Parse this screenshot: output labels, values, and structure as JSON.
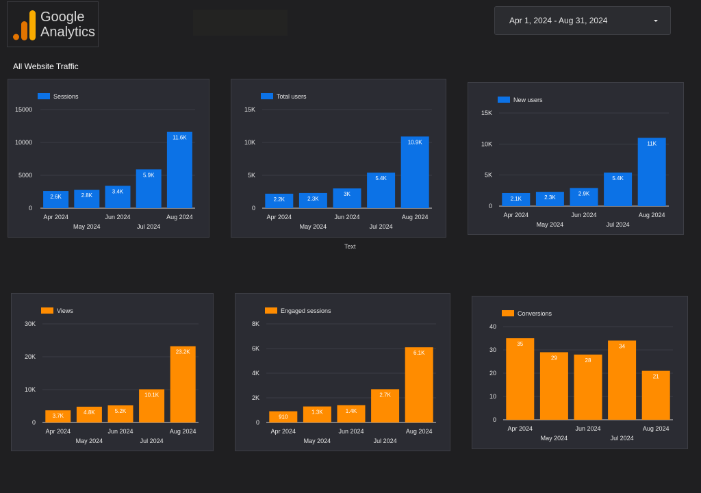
{
  "header": {
    "logo_text_line1": "Google",
    "logo_text_line2": "Analytics",
    "date_range": "Apr 1, 2024 - Aug 31, 2024",
    "section_title": "All Website Traffic",
    "stray_label": "Text"
  },
  "colors": {
    "blue": "#0c72e6",
    "orange": "#ff8c00",
    "logo_dark": "#e37400",
    "logo_light": "#f9ab00"
  },
  "chart_data": [
    {
      "id": "sessions",
      "type": "bar",
      "color": "blue",
      "legend": "Sessions",
      "categories": [
        "Apr 2024",
        "May 2024",
        "Jun 2024",
        "Jul 2024",
        "Aug 2024"
      ],
      "values": [
        2600,
        2800,
        3400,
        5900,
        11600
      ],
      "labels": [
        "2.6K",
        "2.8K",
        "3.4K",
        "5.9K",
        "11.6K"
      ],
      "ylim": [
        0,
        15000
      ],
      "yticks": [
        0,
        5000,
        10000,
        15000
      ],
      "ytick_labels": [
        "0",
        "5000",
        "10000",
        "15000"
      ],
      "grid": true,
      "legend_position": "top-left"
    },
    {
      "id": "total-users",
      "type": "bar",
      "color": "blue",
      "legend": "Total users",
      "categories": [
        "Apr 2024",
        "May 2024",
        "Jun 2024",
        "Jul 2024",
        "Aug 2024"
      ],
      "values": [
        2200,
        2300,
        3000,
        5400,
        10900
      ],
      "labels": [
        "2.2K",
        "2.3K",
        "3K",
        "5.4K",
        "10.9K"
      ],
      "ylim": [
        0,
        15000
      ],
      "yticks": [
        0,
        5000,
        10000,
        15000
      ],
      "ytick_labels": [
        "0",
        "5K",
        "10K",
        "15K"
      ],
      "grid": true,
      "legend_position": "top-left"
    },
    {
      "id": "new-users",
      "type": "bar",
      "color": "blue",
      "legend": "New users",
      "categories": [
        "Apr 2024",
        "May 2024",
        "Jun 2024",
        "Jul 2024",
        "Aug 2024"
      ],
      "values": [
        2100,
        2300,
        2900,
        5400,
        11000
      ],
      "labels": [
        "2.1K",
        "2.3K",
        "2.9K",
        "5.4K",
        "11K"
      ],
      "ylim": [
        0,
        15000
      ],
      "yticks": [
        0,
        5000,
        10000,
        15000
      ],
      "ytick_labels": [
        "0",
        "5K",
        "10K",
        "15K"
      ],
      "grid": true,
      "legend_position": "top-left"
    },
    {
      "id": "views",
      "type": "bar",
      "color": "orange",
      "legend": "Views",
      "categories": [
        "Apr 2024",
        "May 2024",
        "Jun 2024",
        "Jul 2024",
        "Aug 2024"
      ],
      "values": [
        3700,
        4800,
        5200,
        10100,
        23200
      ],
      "labels": [
        "3.7K",
        "4.8K",
        "5.2K",
        "10.1K",
        "23.2K"
      ],
      "ylim": [
        0,
        30000
      ],
      "yticks": [
        0,
        10000,
        20000,
        30000
      ],
      "ytick_labels": [
        "0",
        "10K",
        "20K",
        "30K"
      ],
      "grid": true,
      "legend_position": "top-left"
    },
    {
      "id": "engaged-sessions",
      "type": "bar",
      "color": "orange",
      "legend": "Engaged sessions",
      "categories": [
        "Apr 2024",
        "May 2024",
        "Jun 2024",
        "Jul 2024",
        "Aug 2024"
      ],
      "values": [
        910,
        1300,
        1400,
        2700,
        6100
      ],
      "labels": [
        "910",
        "1.3K",
        "1.4K",
        "2.7K",
        "6.1K"
      ],
      "ylim": [
        0,
        8000
      ],
      "yticks": [
        0,
        2000,
        4000,
        6000,
        8000
      ],
      "ytick_labels": [
        "0",
        "2K",
        "4K",
        "6K",
        "8K"
      ],
      "grid": true,
      "legend_position": "top-left"
    },
    {
      "id": "conversions",
      "type": "bar",
      "color": "orange",
      "legend": "Conversions",
      "categories": [
        "Apr 2024",
        "May 2024",
        "Jun 2024",
        "Jul 2024",
        "Aug 2024"
      ],
      "values": [
        35,
        29,
        28,
        34,
        21
      ],
      "labels": [
        "35",
        "29",
        "28",
        "34",
        "21"
      ],
      "ylim": [
        0,
        40
      ],
      "yticks": [
        0,
        10,
        20,
        30,
        40
      ],
      "ytick_labels": [
        "0",
        "10",
        "20",
        "30",
        "40"
      ],
      "grid": true,
      "legend_position": "top-left"
    }
  ]
}
